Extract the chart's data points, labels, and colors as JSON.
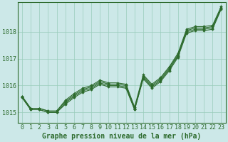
{
  "xlabel": "Graphe pression niveau de la mer (hPa)",
  "background_color": "#cce8e8",
  "grid_color": "#99ccbb",
  "line_color": "#2d6b2d",
  "hours": [
    0,
    1,
    2,
    3,
    4,
    5,
    6,
    7,
    8,
    9,
    10,
    11,
    12,
    13,
    14,
    15,
    16,
    17,
    18,
    19,
    20,
    21,
    22,
    23
  ],
  "series1": [
    1015.55,
    1015.1,
    1015.1,
    1015.0,
    1015.0,
    1015.3,
    1015.55,
    1015.75,
    1015.85,
    1016.05,
    1015.95,
    1015.95,
    1015.9,
    1015.1,
    1016.25,
    1015.9,
    1016.15,
    1016.55,
    1017.05,
    1017.95,
    1018.05,
    1018.05,
    1018.1,
    1018.85
  ],
  "series2": [
    1015.55,
    1015.1,
    1015.1,
    1015.0,
    1015.0,
    1015.35,
    1015.6,
    1015.8,
    1015.9,
    1016.1,
    1016.0,
    1016.0,
    1015.95,
    1015.1,
    1016.3,
    1015.95,
    1016.2,
    1016.6,
    1017.1,
    1018.0,
    1018.1,
    1018.1,
    1018.15,
    1018.9
  ],
  "series3": [
    1015.6,
    1015.15,
    1015.15,
    1015.05,
    1015.05,
    1015.4,
    1015.65,
    1015.85,
    1015.95,
    1016.15,
    1016.05,
    1016.05,
    1016.0,
    1015.15,
    1016.35,
    1016.0,
    1016.25,
    1016.65,
    1017.15,
    1018.05,
    1018.15,
    1018.15,
    1018.2,
    1018.9
  ],
  "series4": [
    1015.6,
    1015.15,
    1015.15,
    1015.05,
    1015.05,
    1015.45,
    1015.7,
    1015.9,
    1016.0,
    1016.2,
    1016.1,
    1016.1,
    1016.05,
    1015.2,
    1016.4,
    1016.05,
    1016.3,
    1016.7,
    1017.2,
    1018.1,
    1018.2,
    1018.2,
    1018.25,
    1018.95
  ],
  "ylim": [
    1014.6,
    1019.1
  ],
  "yticks": [
    1015,
    1016,
    1017,
    1018
  ],
  "marker": "D",
  "markersize": 1.8,
  "linewidth": 0.8,
  "xlabel_fontsize": 7,
  "tick_fontsize": 6,
  "xlabel_color": "#2d6b2d",
  "tick_color": "#2d6b2d",
  "spine_color": "#2d6b2d"
}
